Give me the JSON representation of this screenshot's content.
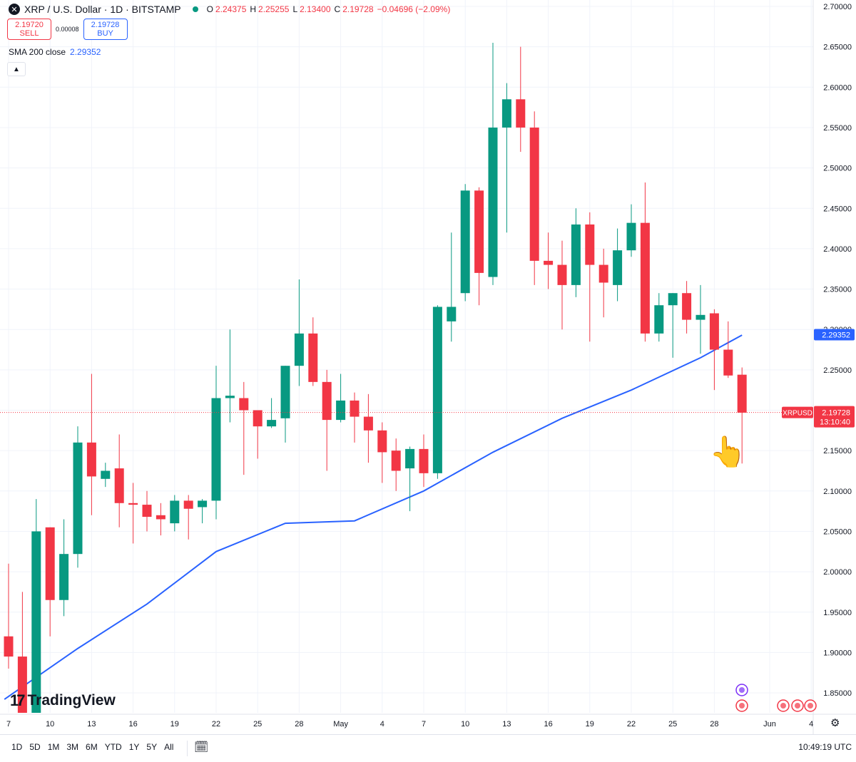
{
  "header": {
    "symbol_icon": "x-logo-icon",
    "title": "XRP / U.S. Dollar · 1D · BITSTAMP",
    "ohlc": {
      "o_label": "O",
      "o": "2.24375",
      "h_label": "H",
      "h": "2.25255",
      "l_label": "L",
      "l": "2.13400",
      "c_label": "C",
      "c": "2.19728",
      "change": "−0.04696 (−2.09%)"
    }
  },
  "trade": {
    "sell_price": "2.19720",
    "sell_label": "SELL",
    "spread": "0.00008",
    "buy_price": "2.19728",
    "buy_label": "BUY"
  },
  "indicator": {
    "label": "SMA 200 close",
    "value": "2.29352"
  },
  "branding": "TradingView",
  "time_ranges": [
    "1D",
    "5D",
    "1M",
    "3M",
    "6M",
    "YTD",
    "1Y",
    "5Y",
    "All"
  ],
  "clock": "10:49:19 UTC",
  "colors": {
    "up": "#089981",
    "down": "#f23645",
    "sma": "#2962ff",
    "grid": "#f0f3fa"
  },
  "chart_data": {
    "type": "candlestick",
    "title": "XRP / U.S. Dollar · 1D · BITSTAMP",
    "ylim": [
      1.825,
      2.705
    ],
    "y_ticks": [
      "2.70000",
      "2.65000",
      "2.60000",
      "2.55000",
      "2.50000",
      "2.45000",
      "2.40000",
      "2.35000",
      "2.30000",
      "2.25000",
      "2.20000",
      "2.15000",
      "2.10000",
      "2.05000",
      "2.00000",
      "1.95000",
      "1.90000",
      "1.85000"
    ],
    "x_ticks": [
      {
        "label": "7",
        "i": 0
      },
      {
        "label": "10",
        "i": 3
      },
      {
        "label": "13",
        "i": 6
      },
      {
        "label": "16",
        "i": 9
      },
      {
        "label": "19",
        "i": 12
      },
      {
        "label": "22",
        "i": 15
      },
      {
        "label": "25",
        "i": 18
      },
      {
        "label": "28",
        "i": 21
      },
      {
        "label": "May",
        "i": 24
      },
      {
        "label": "4",
        "i": 27
      },
      {
        "label": "7",
        "i": 30
      },
      {
        "label": "10",
        "i": 33
      },
      {
        "label": "13",
        "i": 36
      },
      {
        "label": "16",
        "i": 39
      },
      {
        "label": "19",
        "i": 42
      },
      {
        "label": "22",
        "i": 45
      },
      {
        "label": "25",
        "i": 48
      },
      {
        "label": "28",
        "i": 51
      },
      {
        "label": "Jun",
        "i": 55
      },
      {
        "label": "4",
        "i": 58
      }
    ],
    "candles": [
      {
        "o": 1.92,
        "h": 2.01,
        "l": 1.88,
        "c": 1.895
      },
      {
        "o": 1.895,
        "h": 1.975,
        "l": 1.82,
        "c": 1.82
      },
      {
        "o": 1.82,
        "h": 2.09,
        "l": 1.82,
        "c": 2.05
      },
      {
        "o": 2.055,
        "h": 2.055,
        "l": 1.92,
        "c": 1.965
      },
      {
        "o": 1.965,
        "h": 2.065,
        "l": 1.945,
        "c": 2.022
      },
      {
        "o": 2.022,
        "h": 2.18,
        "l": 2.005,
        "c": 2.16
      },
      {
        "o": 2.16,
        "h": 2.245,
        "l": 2.07,
        "c": 2.118
      },
      {
        "o": 2.115,
        "h": 2.135,
        "l": 2.105,
        "c": 2.125
      },
      {
        "o": 2.128,
        "h": 2.17,
        "l": 2.055,
        "c": 2.085
      },
      {
        "o": 2.085,
        "h": 2.11,
        "l": 2.035,
        "c": 2.083
      },
      {
        "o": 2.083,
        "h": 2.1,
        "l": 2.05,
        "c": 2.068
      },
      {
        "o": 2.07,
        "h": 2.085,
        "l": 2.045,
        "c": 2.065
      },
      {
        "o": 2.06,
        "h": 2.095,
        "l": 2.05,
        "c": 2.088
      },
      {
        "o": 2.088,
        "h": 2.095,
        "l": 2.04,
        "c": 2.078
      },
      {
        "o": 2.08,
        "h": 2.09,
        "l": 2.06,
        "c": 2.088
      },
      {
        "o": 2.088,
        "h": 2.255,
        "l": 2.065,
        "c": 2.215
      },
      {
        "o": 2.215,
        "h": 2.3,
        "l": 2.185,
        "c": 2.218
      },
      {
        "o": 2.215,
        "h": 2.235,
        "l": 2.12,
        "c": 2.2
      },
      {
        "o": 2.2,
        "h": 2.2,
        "l": 2.14,
        "c": 2.18
      },
      {
        "o": 2.18,
        "h": 2.215,
        "l": 2.178,
        "c": 2.188
      },
      {
        "o": 2.19,
        "h": 2.255,
        "l": 2.16,
        "c": 2.255
      },
      {
        "o": 2.255,
        "h": 2.362,
        "l": 2.23,
        "c": 2.295
      },
      {
        "o": 2.295,
        "h": 2.315,
        "l": 2.23,
        "c": 2.235
      },
      {
        "o": 2.235,
        "h": 2.25,
        "l": 2.125,
        "c": 2.188
      },
      {
        "o": 2.188,
        "h": 2.245,
        "l": 2.185,
        "c": 2.212
      },
      {
        "o": 2.212,
        "h": 2.222,
        "l": 2.16,
        "c": 2.192
      },
      {
        "o": 2.192,
        "h": 2.22,
        "l": 2.135,
        "c": 2.175
      },
      {
        "o": 2.175,
        "h": 2.185,
        "l": 2.11,
        "c": 2.148
      },
      {
        "o": 2.15,
        "h": 2.165,
        "l": 2.1,
        "c": 2.125
      },
      {
        "o": 2.128,
        "h": 2.155,
        "l": 2.075,
        "c": 2.152
      },
      {
        "o": 2.152,
        "h": 2.17,
        "l": 2.105,
        "c": 2.122
      },
      {
        "o": 2.122,
        "h": 2.33,
        "l": 2.115,
        "c": 2.328
      },
      {
        "o": 2.31,
        "h": 2.42,
        "l": 2.285,
        "c": 2.328
      },
      {
        "o": 2.345,
        "h": 2.48,
        "l": 2.335,
        "c": 2.472
      },
      {
        "o": 2.472,
        "h": 2.476,
        "l": 2.33,
        "c": 2.37
      },
      {
        "o": 2.365,
        "h": 2.655,
        "l": 2.355,
        "c": 2.55
      },
      {
        "o": 2.55,
        "h": 2.605,
        "l": 2.42,
        "c": 2.585
      },
      {
        "o": 2.585,
        "h": 2.65,
        "l": 2.52,
        "c": 2.55
      },
      {
        "o": 2.55,
        "h": 2.57,
        "l": 2.355,
        "c": 2.385
      },
      {
        "o": 2.385,
        "h": 2.42,
        "l": 2.35,
        "c": 2.38
      },
      {
        "o": 2.38,
        "h": 2.41,
        "l": 2.3,
        "c": 2.355
      },
      {
        "o": 2.355,
        "h": 2.45,
        "l": 2.34,
        "c": 2.43
      },
      {
        "o": 2.43,
        "h": 2.445,
        "l": 2.285,
        "c": 2.38
      },
      {
        "o": 2.38,
        "h": 2.4,
        "l": 2.315,
        "c": 2.358
      },
      {
        "o": 2.355,
        "h": 2.425,
        "l": 2.335,
        "c": 2.398
      },
      {
        "o": 2.398,
        "h": 2.455,
        "l": 2.39,
        "c": 2.432
      },
      {
        "o": 2.432,
        "h": 2.482,
        "l": 2.285,
        "c": 2.295
      },
      {
        "o": 2.295,
        "h": 2.345,
        "l": 2.285,
        "c": 2.33
      },
      {
        "o": 2.33,
        "h": 2.345,
        "l": 2.265,
        "c": 2.345
      },
      {
        "o": 2.345,
        "h": 2.36,
        "l": 2.295,
        "c": 2.312
      },
      {
        "o": 2.312,
        "h": 2.355,
        "l": 2.27,
        "c": 2.318
      },
      {
        "o": 2.32,
        "h": 2.325,
        "l": 2.225,
        "c": 2.275
      },
      {
        "o": 2.275,
        "h": 2.31,
        "l": 2.24,
        "c": 2.243
      },
      {
        "o": 2.244,
        "h": 2.253,
        "l": 2.134,
        "c": 2.197
      }
    ],
    "sma200": [
      {
        "i": -0.3,
        "v": 1.842
      },
      {
        "i": 5,
        "v": 1.905
      },
      {
        "i": 10,
        "v": 1.96
      },
      {
        "i": 15,
        "v": 2.025
      },
      {
        "i": 20,
        "v": 2.06
      },
      {
        "i": 25,
        "v": 2.063
      },
      {
        "i": 30,
        "v": 2.1
      },
      {
        "i": 35,
        "v": 2.148
      },
      {
        "i": 40,
        "v": 2.19
      },
      {
        "i": 45,
        "v": 2.225
      },
      {
        "i": 50,
        "v": 2.265
      },
      {
        "i": 53,
        "v": 2.293
      }
    ],
    "last_price": {
      "symbol": "XRPUSD",
      "value": "2.19728",
      "countdown": "13:10:40"
    },
    "sma_tag": "2.29352"
  }
}
